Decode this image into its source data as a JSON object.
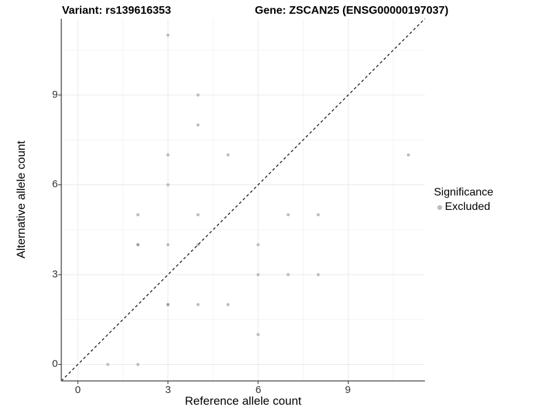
{
  "colors": {
    "background": "#ffffff",
    "grid_major": "#e9e9e9",
    "grid_minor": "#f4f4f4",
    "axis_line": "#4a4a4a",
    "tick_mark": "#333333",
    "tick_text": "#333333",
    "dashed_line": "#111111",
    "point": "#bdbdbd",
    "point_overlap": "#9c9c9c"
  },
  "chart_data": {
    "type": "scatter",
    "titles": {
      "left": "Variant: rs139616353",
      "right": "Gene: ZSCAN25 (ENSG00000197037)"
    },
    "xlabel": "Reference allele count",
    "ylabel": "Alternative allele count",
    "xlim": [
      -0.55,
      11.55
    ],
    "ylim": [
      -0.55,
      11.55
    ],
    "x_ticks": [
      {
        "v": 0,
        "label": "0"
      },
      {
        "v": 3,
        "label": "3"
      },
      {
        "v": 6,
        "label": "6"
      },
      {
        "v": 9,
        "label": "9"
      }
    ],
    "y_ticks": [
      {
        "v": 0,
        "label": "0"
      },
      {
        "v": 3,
        "label": "3"
      },
      {
        "v": 6,
        "label": "6"
      },
      {
        "v": 9,
        "label": "9"
      }
    ],
    "x_minor": [
      1.5,
      4.5,
      7.5,
      10.5
    ],
    "y_minor": [
      1.5,
      4.5,
      7.5,
      10.5
    ],
    "grid": "major and minor gridlines on white background",
    "identity_line": {
      "slope": 1,
      "intercept": 0,
      "style": "dashed",
      "color": "#111111"
    },
    "series": [
      {
        "name": "Excluded",
        "marker_color": "#bdbdbd",
        "points": [
          [
            1,
            0
          ],
          [
            2,
            0
          ],
          [
            6,
            1
          ],
          [
            3,
            2
          ],
          [
            4,
            2
          ],
          [
            5,
            2
          ],
          [
            6,
            3
          ],
          [
            7,
            3
          ],
          [
            8,
            3
          ],
          [
            2,
            4
          ],
          [
            3,
            4
          ],
          [
            4,
            4
          ],
          [
            6,
            4
          ],
          [
            2,
            5
          ],
          [
            4,
            5
          ],
          [
            7,
            5
          ],
          [
            8,
            5
          ],
          [
            3,
            6
          ],
          [
            3,
            7
          ],
          [
            5,
            7
          ],
          [
            11,
            7
          ],
          [
            4,
            8
          ],
          [
            4,
            9
          ],
          [
            3,
            11
          ]
        ],
        "darker_overlap_points": [
          [
            3,
            2
          ],
          [
            2,
            4
          ]
        ]
      }
    ],
    "legend": {
      "title": "Significance",
      "position": "right-middle",
      "items": [
        {
          "label": "Excluded",
          "marker_color": "#bdbdbd"
        }
      ]
    }
  }
}
